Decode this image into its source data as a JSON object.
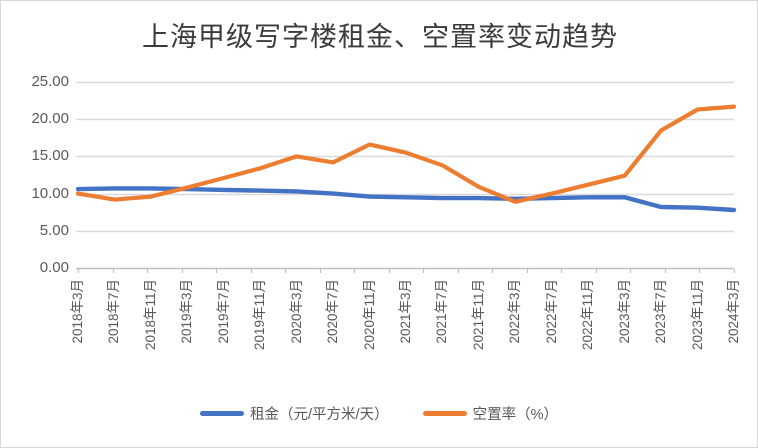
{
  "title": "上海甲级写字楼租金、空置率变动趋势",
  "chart_data": {
    "type": "line",
    "title": "上海甲级写字楼租金、空置率变动趋势",
    "categories": [
      "2018年3月",
      "2018年7月",
      "2018年11月",
      "2019年3月",
      "2019年7月",
      "2019年11月",
      "2020年3月",
      "2020年7月",
      "2020年11月",
      "2021年3月",
      "2021年7月",
      "2021年11月",
      "2022年3月",
      "2022年7月",
      "2022年11月",
      "2023年3月",
      "2023年7月",
      "2023年11月",
      "2024年3月"
    ],
    "series": [
      {
        "name": "租金（元/平方米/天）",
        "color": "#4472c4",
        "values": [
          10.6,
          10.7,
          10.7,
          10.6,
          10.5,
          10.4,
          10.3,
          10.0,
          9.6,
          9.5,
          9.4,
          9.4,
          9.3,
          9.4,
          9.5,
          9.5,
          8.2,
          8.1,
          7.8
        ]
      },
      {
        "name": "空置率（%）",
        "color": "#ed7d31",
        "values": [
          10.0,
          9.2,
          9.6,
          10.8,
          12.1,
          13.4,
          15.0,
          14.2,
          16.6,
          15.5,
          13.8,
          10.9,
          8.9,
          10.0,
          11.2,
          12.4,
          18.5,
          21.3,
          21.7
        ]
      }
    ],
    "y_axis": {
      "min": 0,
      "max": 25,
      "step": 5,
      "tick_labels": [
        "0.00",
        "5.00",
        "10.00",
        "15.00",
        "20.00",
        "25.00"
      ]
    },
    "x_axis": {
      "label_rotation_deg": -90
    },
    "grid": true,
    "legend_position": "bottom",
    "colors": {
      "gridline": "#d9d9d9",
      "axis": "#bfbfbf",
      "tick_text": "#595959",
      "title_text": "#3b3b3b"
    }
  }
}
